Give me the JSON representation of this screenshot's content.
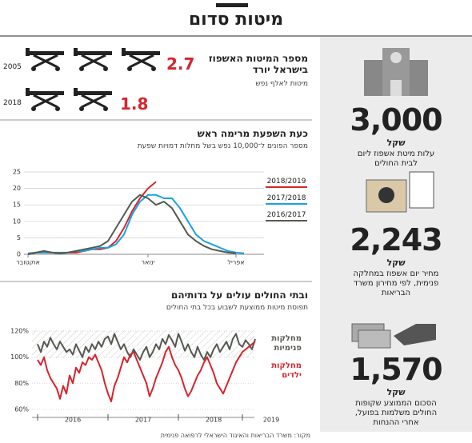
{
  "title": "מיטות סדום",
  "beds": {
    "title": [
      "מספר המיטות האשפוז",
      "בישראל יורד"
    ],
    "subtitle": "מיטות לאלף נפש",
    "rows": [
      {
        "year": "2005",
        "value": 2.7
      },
      {
        "year": "2018",
        "value": 1.8
      }
    ],
    "color": "#d4252f"
  },
  "sidebar": [
    {
      "value": "3,000",
      "unit": "שקל",
      "text": "עלות מיטת אשפוז ליום לבית החולים"
    },
    {
      "value": "2,243",
      "unit": "שקל",
      "text": "מחיר יום אשפוז במחלקה פנימית, לפי מחירון משרד הבריאות"
    },
    {
      "value": "1,570",
      "unit": "שקל",
      "text": "הסכום הממוצע שקופות החולים משלמות בפועל, אחרי ההנחות"
    }
  ],
  "chart_data": [
    {
      "type": "line",
      "title": "כעת השפעת מרימה ראש",
      "subtitle": "מספר הפונים ל־10,000 נפש בשל מחלות דמויות שפעת",
      "categories": [
        "אוקטובר",
        null,
        null,
        null,
        null,
        null,
        null,
        null,
        null,
        null,
        null,
        null,
        null,
        null,
        null,
        "ינואר",
        null,
        null,
        null,
        null,
        null,
        null,
        null,
        null,
        null,
        null,
        "אפריל",
        null,
        null,
        null
      ],
      "ylim": [
        0,
        25
      ],
      "yticks": [
        0,
        5,
        10,
        15,
        20,
        25
      ],
      "grid": true,
      "series": [
        {
          "name": "2018/2019",
          "color": "#d4252f",
          "values": [
            0,
            0.5,
            0.5,
            0.5,
            0.3,
            0.5,
            0.5,
            1,
            1.5,
            1.5,
            2,
            4,
            8,
            13,
            17,
            20,
            22,
            null,
            null,
            null,
            null,
            null,
            null,
            null,
            null,
            null,
            null,
            null,
            null,
            null
          ]
        },
        {
          "name": "2017/2018",
          "color": "#1aa3e0",
          "values": [
            0.3,
            0.5,
            0.5,
            0.5,
            0.5,
            0.5,
            1,
            1,
            1.5,
            2,
            2,
            3,
            6,
            12,
            16,
            18,
            18,
            17,
            17,
            14,
            10,
            6,
            4,
            3,
            2,
            1,
            0.5,
            0.3,
            null,
            null
          ]
        },
        {
          "name": "2016/2017",
          "color": "#555a50",
          "values": [
            0,
            0.5,
            1,
            0.5,
            0.3,
            0.5,
            1,
            1.5,
            2,
            2.5,
            4,
            8,
            12,
            16,
            18,
            17,
            15,
            16,
            14,
            10,
            6,
            4,
            2.5,
            1.5,
            1,
            0.5,
            0.3,
            null,
            null,
            null
          ]
        }
      ]
    },
    {
      "type": "line",
      "title": "ובתי החולים עולים על גדותיהם",
      "subtitle": "תפוסת מיטות ממוצעת לשבוע בכל בתי החולים",
      "categories": [
        null,
        null,
        null,
        null,
        null,
        null,
        null,
        null,
        null,
        null,
        null,
        "2016",
        null,
        null,
        null,
        null,
        null,
        null,
        null,
        null,
        null,
        null,
        null,
        null,
        null,
        null,
        null,
        null,
        null,
        null,
        null,
        null,
        null,
        "2017",
        null,
        null,
        null,
        null,
        null,
        null,
        null,
        null,
        null,
        null,
        null,
        null,
        null,
        null,
        null,
        null,
        null,
        null,
        null,
        null,
        null,
        "2018",
        null,
        null,
        null,
        null,
        null,
        null,
        null,
        null,
        null,
        null,
        null,
        null,
        null,
        null,
        null,
        null,
        null,
        "2019",
        null,
        null
      ],
      "ylim": [
        55,
        125
      ],
      "yticks": [
        {
          "value": 60,
          "label": "60%"
        },
        {
          "value": 80,
          "label": "80%"
        },
        {
          "value": 100,
          "label": "100%"
        },
        {
          "value": 120,
          "label": "120%"
        }
      ],
      "grid": true,
      "series": [
        {
          "name": "מחלקות פנימיות",
          "color": "#555a50",
          "values": [
            110,
            104,
            112,
            108,
            115,
            110,
            106,
            112,
            108,
            104,
            106,
            102,
            110,
            105,
            100,
            108,
            104,
            110,
            106,
            112,
            108,
            114,
            116,
            110,
            118,
            112,
            106,
            110,
            104,
            100,
            106,
            102,
            98,
            104,
            108,
            100,
            104,
            110,
            106,
            114,
            110,
            117,
            113,
            108,
            118,
            112,
            105,
            110,
            104,
            100,
            108,
            102,
            98,
            104,
            100,
            106,
            110,
            104,
            108,
            112,
            106,
            114,
            118,
            110,
            108,
            113,
            110,
            106,
            114,
            null,
            null,
            null,
            null,
            null,
            null,
            null
          ]
        },
        {
          "name": "מחלקות ילדים",
          "color": "#d4252f",
          "values": [
            98,
            94,
            100,
            90,
            84,
            80,
            76,
            68,
            78,
            72,
            86,
            80,
            92,
            88,
            96,
            94,
            100,
            98,
            102,
            96,
            90,
            80,
            72,
            66,
            78,
            84,
            92,
            100,
            96,
            102,
            104,
            98,
            92,
            86,
            80,
            70,
            76,
            84,
            90,
            96,
            104,
            108,
            100,
            94,
            90,
            84,
            76,
            70,
            74,
            80,
            86,
            90,
            96,
            100,
            94,
            88,
            80,
            76,
            72,
            78,
            84,
            90,
            96,
            100,
            104,
            106,
            108,
            110,
            112,
            null,
            null,
            null,
            null,
            null,
            null,
            null
          ]
        }
      ]
    }
  ],
  "source": "מקור: משרד הבריאות והאיגוד הישראלי לרפואה פנימית"
}
